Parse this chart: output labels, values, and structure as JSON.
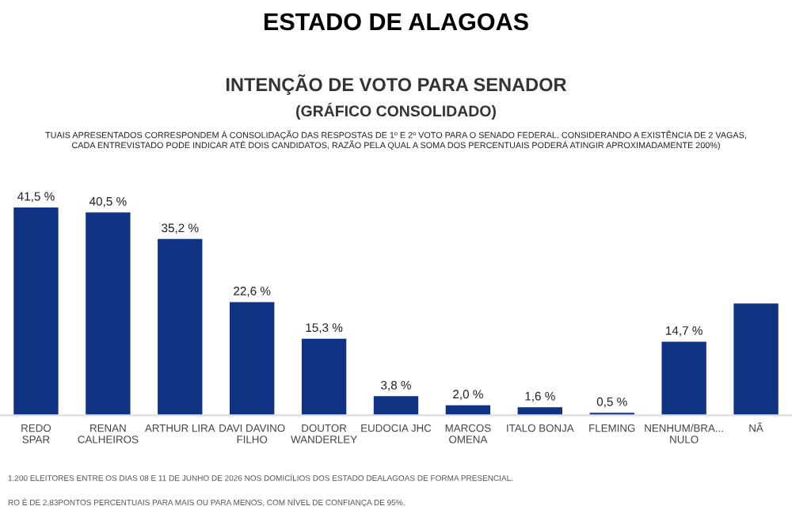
{
  "chart_data": {
    "type": "bar",
    "title": "ESTADO DE ALAGOAS",
    "subtitle": "INTENÇÃO DE VOTO PARA SENADOR\n(GRÁFICO CONSOLIDADO)",
    "annotations": [
      "TUAIS APRESENTADOS CORRESPONDEM À CONSOLIDAÇÃO DAS RESPOSTAS DE 1º E 2º VOTO PARA O SENADO FEDERAL. CONSIDERANDO A EXISTÊNCIA DE 2 VAGAS,\nCADA ENTREVISTADO PODE INDICAR ATÉ DOIS CANDIDATOS, RAZÃO PELA QUAL A SOMA DOS PERCENTUAIS PODERÁ ATINGIR APROXIMADAMENTE 200%)",
      "1.200 ELEITORES ENTRE OS DIAS 08 E 11 DE JUNHO DE 2026 NOS DOMICÍLIOS DOS ESTADO DEALAGOAS DE FORMA PRESENCIAL.",
      "RO É DE 2,83PONTOS PERCENTUAIS PARA MAIS OU PARA MENOS, COM NÍVEL DE CONFIANÇA DE 95%."
    ],
    "categories": [
      "REDO\nSPAR",
      "RENAN\nCALHEIROS",
      "ARTHUR LIRA",
      "DAVI DAVINO\nFILHO",
      "DOUTOR\nWANDERLEY",
      "EUDOCIA JHC",
      "MARCOS\nOMENA",
      "ITALO BONJA",
      "FLEMING",
      "NENHUM/BRA...\nNULO",
      "NÃ"
    ],
    "values": [
      41.5,
      40.5,
      35.2,
      22.6,
      15.3,
      3.8,
      2.0,
      1.6,
      0.5,
      14.7,
      22.3
    ],
    "value_labels": [
      "41,5 %",
      "40,5 %",
      "35,2 %",
      "22,6 %",
      "15,3 %",
      "3,8 %",
      "2,0 %",
      "1,6 %",
      "0,5 %",
      "14,7 %",
      null
    ],
    "color": "#0f3382",
    "grid": false,
    "legend": false
  }
}
